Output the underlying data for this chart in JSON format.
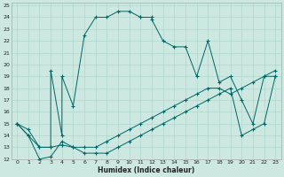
{
  "xlabel": "Humidex (Indice chaleur)",
  "xlim": [
    -0.5,
    23.5
  ],
  "ylim": [
    12,
    25.2
  ],
  "yticks": [
    12,
    13,
    14,
    15,
    16,
    17,
    18,
    19,
    20,
    21,
    22,
    23,
    24,
    25
  ],
  "xticks": [
    0,
    1,
    2,
    3,
    4,
    5,
    6,
    7,
    8,
    9,
    10,
    11,
    12,
    13,
    14,
    15,
    16,
    17,
    18,
    19,
    20,
    21,
    22,
    23
  ],
  "background_color": "#cce8e0",
  "grid_color": "#b0d8d0",
  "line_color": "#006666",
  "line1_x": [
    0,
    1,
    2,
    3,
    3,
    4,
    4,
    5,
    6,
    7,
    8,
    9,
    10,
    11,
    11,
    12,
    12,
    13,
    14,
    15,
    16,
    17,
    18,
    19,
    20,
    21,
    22,
    23
  ],
  "line1_y": [
    15,
    14.5,
    13,
    13,
    19.5,
    14,
    19.0,
    16.5,
    22.5,
    24,
    24,
    24.5,
    24.5,
    24,
    24,
    24,
    23.8,
    22,
    21.5,
    21.5,
    19,
    22,
    18.5,
    19,
    17,
    15,
    19,
    19
  ],
  "line2_x": [
    0,
    1,
    2,
    3,
    4,
    5,
    6,
    7,
    8,
    9,
    10,
    11,
    12,
    13,
    14,
    15,
    16,
    17,
    18,
    19,
    20,
    21,
    22,
    23
  ],
  "line2_y": [
    15,
    14,
    13,
    13,
    13.2,
    13,
    13,
    13,
    13.5,
    14,
    14.5,
    15,
    15.5,
    16,
    16.5,
    17,
    17.5,
    18,
    18.0,
    17.5,
    18,
    18.5,
    19,
    19.5
  ],
  "line3_x": [
    0,
    1,
    2,
    3,
    4,
    5,
    6,
    7,
    8,
    9,
    10,
    11,
    12,
    13,
    14,
    15,
    16,
    17,
    18,
    19,
    20,
    21,
    22,
    23
  ],
  "line3_y": [
    15,
    14,
    12,
    12.2,
    13.5,
    13,
    12.5,
    12.5,
    12.5,
    13,
    13.5,
    14,
    14.5,
    15,
    15.5,
    16,
    16.5,
    17,
    17.5,
    18,
    14,
    14.5,
    15,
    19
  ]
}
